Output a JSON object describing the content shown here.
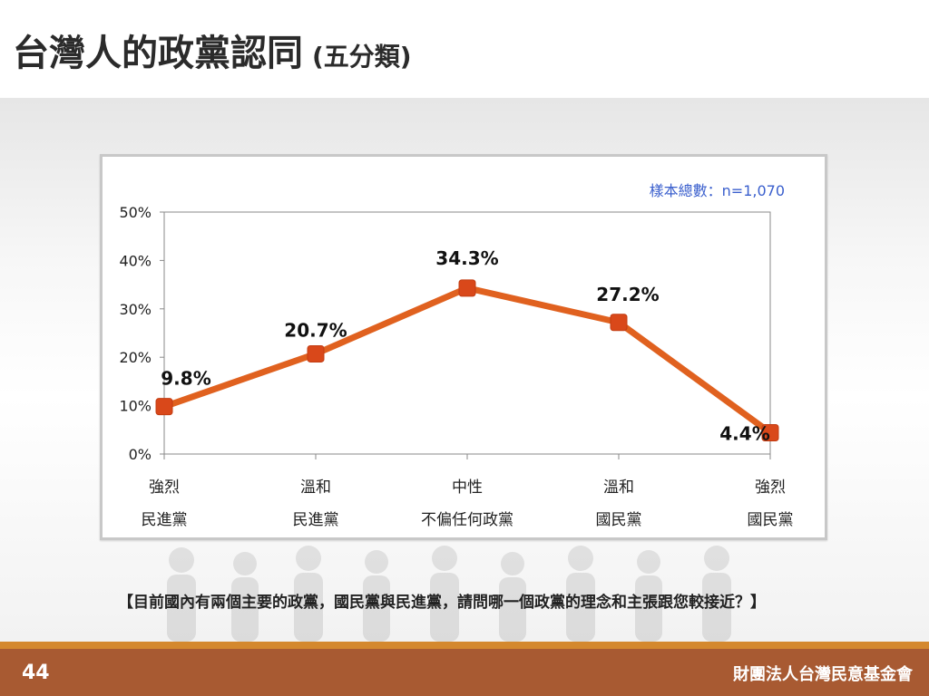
{
  "header": {
    "title": "台灣人的政黨認同",
    "subtitle": "(五分類)"
  },
  "sample_note": "樣本總數：n=1,070",
  "question": "【目前國內有兩個主要的政黨，國民黨與民進黨，請問哪一個政黨的理念和主張跟您較接近？】",
  "footer": {
    "page_number": "44",
    "organization": "財團法人台灣民意基金會"
  },
  "colors": {
    "line": "#e0611f",
    "marker": "#d9481a",
    "footer": "#a85a32",
    "footer_accent": "#d4882e"
  },
  "chart_data": {
    "type": "line",
    "categories": [
      [
        "強烈",
        "民進黨"
      ],
      [
        "溫和",
        "民進黨"
      ],
      [
        "中性",
        "不偏任何政黨"
      ],
      [
        "溫和",
        "國民黨"
      ],
      [
        "強烈",
        "國民黨"
      ]
    ],
    "values": [
      9.8,
      20.7,
      34.3,
      27.2,
      4.4
    ],
    "data_labels": [
      "9.8%",
      "20.7%",
      "34.3%",
      "27.2%",
      "4.4%"
    ],
    "ylim": [
      0,
      50
    ],
    "yticks": [
      0,
      10,
      20,
      30,
      40,
      50
    ],
    "ytick_labels": [
      "0%",
      "10%",
      "20%",
      "30%",
      "40%",
      "50%"
    ],
    "grid": false,
    "legend": "none"
  }
}
